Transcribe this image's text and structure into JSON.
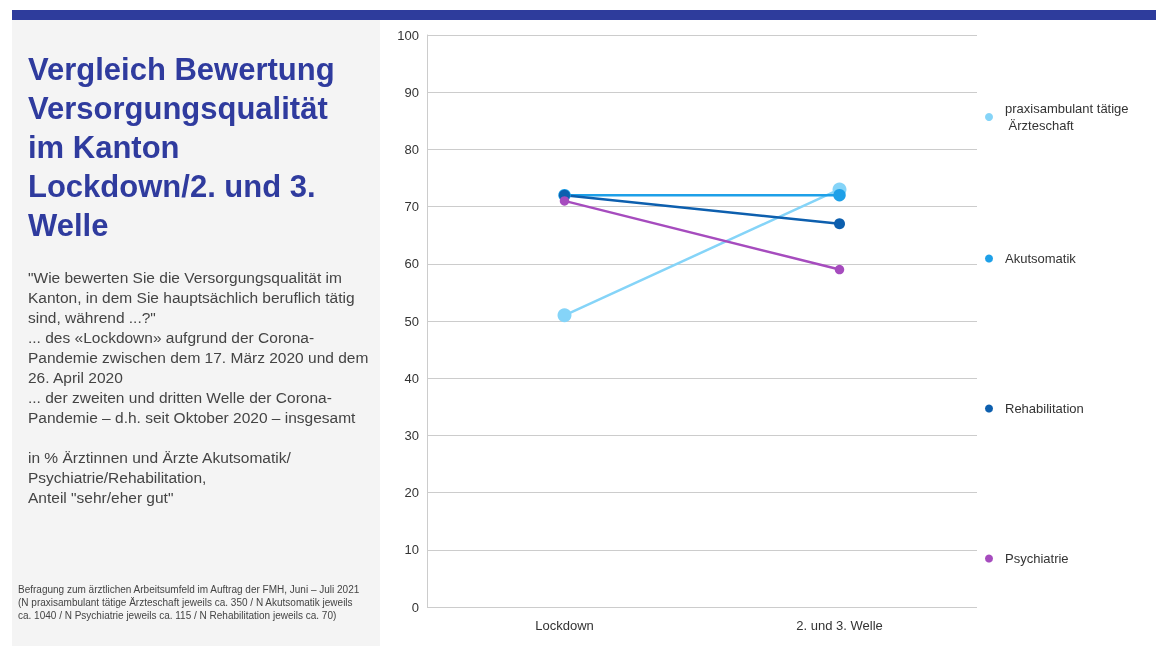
{
  "chart_data": {
    "type": "line",
    "title": "Vergleich Bewertung Versorgungsqualität im Kanton Lockdown/2. und 3. Welle",
    "subtitle": "\"Wie bewerten Sie die Versorgungsqualität im Kanton, in dem Sie hauptsächlich beruflich tätig sind, während ...?\"\n... des «Lockdown» aufgrund der Corona-Pandemie zwischen dem 17. März 2020 und dem 26. April 2020\n... der zweiten und dritten Welle der Corona-Pandemie – d.h. seit Oktober 2020 – insgesamt\n\nin % Ärztinnen und Ärzte Akutsomatik/ Psychiatrie/Rehabilitation,\nAnteil \"sehr/eher gut\"",
    "annotations": [
      "Befragung zum ärztlichen Arbeitsumfeld im Auftrag der FMH, Juni – Juli 2021 (N praxisambulant tätige Ärzteschaft jeweils ca. 350 / N Akutsomatik jeweils  ca. 1040 / N Psychiatrie jeweils ca. 115 / N Rehabilitation jeweils ca. 70)"
    ],
    "categories": [
      "Lockdown",
      "2. und 3. Welle"
    ],
    "series": [
      {
        "name": "praxisambulant tätige Ärzteschaft",
        "color": "#85d4f8",
        "values": [
          51,
          73
        ]
      },
      {
        "name": "Akutsomatik",
        "color": "#1ea0e8",
        "values": [
          72,
          72
        ]
      },
      {
        "name": "Rehabilitation",
        "color": "#0d5fae",
        "values": [
          72,
          67
        ]
      },
      {
        "name": "Psychiatrie",
        "color": "#a64cbe",
        "values": [
          71,
          59
        ]
      }
    ],
    "ylim": [
      0,
      100
    ],
    "yticks": [
      0,
      10,
      20,
      30,
      40,
      50,
      60,
      70,
      80,
      90,
      100
    ],
    "grid": "y",
    "legend": "right",
    "marker": "circle",
    "line_style": "solid"
  }
}
